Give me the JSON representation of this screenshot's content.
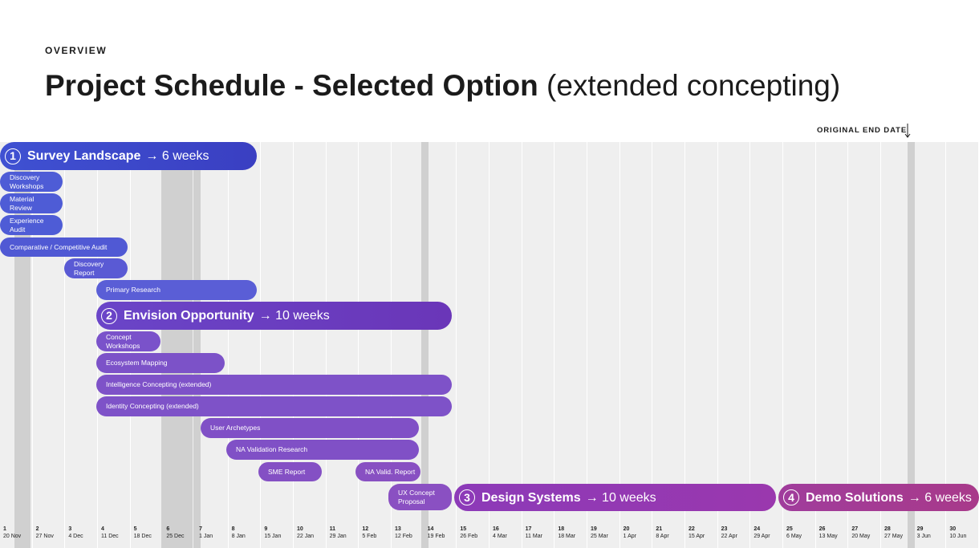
{
  "header": {
    "eyebrow": "OVERVIEW",
    "title": "Project Schedule - Selected Option",
    "subtitle": "(extended concepting)",
    "marker": "ORIGINAL END DATE"
  },
  "weeks": [
    {
      "number": 1,
      "date": "20 Nov"
    },
    {
      "number": 2,
      "date": "27 Nov"
    },
    {
      "number": 3,
      "date": "4 Dec"
    },
    {
      "number": 4,
      "date": "11 Dec"
    },
    {
      "number": 5,
      "date": "18 Dec"
    },
    {
      "number": 6,
      "date": "25 Dec"
    },
    {
      "number": 7,
      "date": "1 Jan"
    },
    {
      "number": 8,
      "date": "8 Jan"
    },
    {
      "number": 9,
      "date": "15 Jan"
    },
    {
      "number": 10,
      "date": "22 Jan"
    },
    {
      "number": 11,
      "date": "29 Jan"
    },
    {
      "number": 12,
      "date": "5 Feb"
    },
    {
      "number": 13,
      "date": "12 Feb"
    },
    {
      "number": 14,
      "date": "19 Feb"
    },
    {
      "number": 15,
      "date": "26 Feb"
    },
    {
      "number": 16,
      "date": "4 Mar"
    },
    {
      "number": 17,
      "date": "11 Mar"
    },
    {
      "number": 18,
      "date": "18 Mar"
    },
    {
      "number": 19,
      "date": "25 Mar"
    },
    {
      "number": 20,
      "date": "1 Apr"
    },
    {
      "number": 21,
      "date": "8 Apr"
    },
    {
      "number": 22,
      "date": "15 Apr"
    },
    {
      "number": 23,
      "date": "22 Apr"
    },
    {
      "number": 24,
      "date": "29 Apr"
    },
    {
      "number": 25,
      "date": "6 May"
    },
    {
      "number": 26,
      "date": "13 May"
    },
    {
      "number": 27,
      "date": "20 May"
    },
    {
      "number": 28,
      "date": "27 May"
    },
    {
      "number": 29,
      "date": "3 Jun"
    },
    {
      "number": 30,
      "date": "10 Jun"
    }
  ],
  "phases": [
    {
      "number": 1,
      "name": "Survey Landscape",
      "duration": "→ 6 weeks"
    },
    {
      "number": 2,
      "name": "Envision Opportunity",
      "duration": "→ 10 weeks"
    },
    {
      "number": 3,
      "name": "Design Systems",
      "duration": "→ 10 weeks"
    },
    {
      "number": 4,
      "name": "Demo Solutions",
      "duration": "→ 6 weeks"
    }
  ],
  "tasks": [
    {
      "label": "Discovery Workshops"
    },
    {
      "label": "Material Review"
    },
    {
      "label": "Experience Audit"
    },
    {
      "label": "Comparative / Competitive Audit"
    },
    {
      "label": "Discovery Report"
    },
    {
      "label": "Primary Research"
    },
    {
      "label": "Concept Workshops"
    },
    {
      "label": "Ecosystem Mapping"
    },
    {
      "label": "Intelligence Concepting (extended)"
    },
    {
      "label": "Identity Concepting (extended)"
    },
    {
      "label": "User Archetypes"
    },
    {
      "label": "NA Validation Research"
    },
    {
      "label": "SME Report"
    },
    {
      "label": "NA Valid. Report"
    },
    {
      "label": "UX Concept Proposal"
    }
  ]
}
